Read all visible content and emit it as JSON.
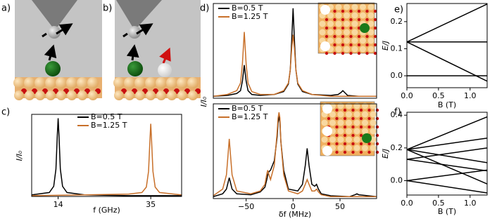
{
  "illustrations": {
    "labels": [
      "a)",
      "b)"
    ]
  },
  "chart_data": [
    {
      "type": "line",
      "panel": "c)",
      "xlabel": "f (GHz)",
      "ylabel": "I/I₀",
      "xlim": [
        8,
        42
      ],
      "ylim": [
        0,
        1.05
      ],
      "xticks": [
        14,
        35
      ],
      "legend": "upper center",
      "series": [
        {
          "name": "B=0.5 T",
          "color": "#000000",
          "x": [
            8,
            12,
            13,
            13.5,
            13.8,
            14,
            14.2,
            14.5,
            15,
            16,
            20,
            30,
            42
          ],
          "values": [
            0.02,
            0.05,
            0.13,
            0.35,
            0.77,
            1.0,
            0.77,
            0.35,
            0.13,
            0.05,
            0.02,
            0.01,
            0.01
          ]
        },
        {
          "name": "B=1.25 T",
          "color": "#c8702a",
          "x": [
            8,
            20,
            30,
            33,
            34,
            34.5,
            34.8,
            35,
            35.2,
            35.5,
            36,
            37,
            42
          ],
          "values": [
            0.01,
            0.02,
            0.03,
            0.05,
            0.12,
            0.32,
            0.7,
            0.93,
            0.7,
            0.32,
            0.12,
            0.05,
            0.02
          ]
        }
      ]
    },
    {
      "type": "line",
      "panel": "d)",
      "ylabel": "I/I₀",
      "xlim": [
        -85,
        89
      ],
      "ylim": [
        0,
        1.0
      ],
      "legend": "upper left",
      "series": [
        {
          "name": "B=0.5 T",
          "color": "#000000",
          "x": [
            -85,
            -70,
            -60,
            -56,
            -54,
            -52,
            -50,
            -48,
            -44,
            -35,
            -20,
            -10,
            -5,
            -3,
            -1.5,
            0,
            1.5,
            3,
            5,
            10,
            20,
            40,
            48,
            51,
            53,
            55,
            58,
            70,
            89
          ],
          "values": [
            0.02,
            0.03,
            0.05,
            0.08,
            0.18,
            0.35,
            0.18,
            0.08,
            0.04,
            0.03,
            0.04,
            0.07,
            0.15,
            0.3,
            0.6,
            0.95,
            0.6,
            0.3,
            0.15,
            0.07,
            0.04,
            0.03,
            0.04,
            0.06,
            0.08,
            0.06,
            0.03,
            0.02,
            0.02
          ]
        },
        {
          "name": "B=1.25 T",
          "color": "#c8702a",
          "x": [
            -85,
            -70,
            -60,
            -56,
            -54,
            -52,
            -50,
            -48,
            -44,
            -35,
            -20,
            -10,
            -5,
            -3,
            -1.5,
            0,
            1.5,
            3,
            5,
            10,
            20,
            40,
            48,
            51,
            53,
            55,
            58,
            70,
            89
          ],
          "values": [
            0.02,
            0.04,
            0.08,
            0.16,
            0.36,
            0.7,
            0.36,
            0.16,
            0.07,
            0.04,
            0.04,
            0.08,
            0.16,
            0.3,
            0.52,
            0.67,
            0.52,
            0.3,
            0.16,
            0.08,
            0.04,
            0.02,
            0.02,
            0.02,
            0.02,
            0.02,
            0.02,
            0.02,
            0.02
          ]
        }
      ]
    },
    {
      "type": "line",
      "xlabel": "δf (MHz)",
      "xlim": [
        -85,
        89
      ],
      "ylim": [
        0,
        1.0
      ],
      "xticks": [
        {
          "value": -50,
          "label": "−50"
        },
        0,
        50
      ],
      "legend": "upper left",
      "series": [
        {
          "name": "B=0.5 T",
          "color": "#000000",
          "x": [
            -85,
            -75,
            -71,
            -69,
            -68,
            -67,
            -65,
            -60,
            -45,
            -35,
            -30,
            -28,
            -27,
            -26,
            -24,
            -20,
            -17,
            -16,
            -15,
            -14,
            -13,
            -10,
            -5,
            5,
            10,
            13,
            15,
            17,
            20,
            23,
            25,
            27,
            30,
            40,
            60,
            66,
            68,
            70,
            89
          ],
          "values": [
            0.02,
            0.05,
            0.1,
            0.18,
            0.22,
            0.18,
            0.1,
            0.05,
            0.04,
            0.07,
            0.12,
            0.2,
            0.25,
            0.28,
            0.3,
            0.4,
            0.65,
            0.8,
            0.87,
            0.8,
            0.6,
            0.3,
            0.1,
            0.08,
            0.15,
            0.35,
            0.53,
            0.35,
            0.15,
            0.13,
            0.15,
            0.1,
            0.05,
            0.03,
            0.02,
            0.04,
            0.05,
            0.04,
            0.02
          ]
        },
        {
          "name": "B=1.25 T",
          "color": "#c8702a",
          "x": [
            -85,
            -75,
            -71,
            -69,
            -68,
            -67,
            -65,
            -60,
            -45,
            -35,
            -30,
            -28,
            -27,
            -26,
            -24,
            -20,
            -17,
            -16,
            -15,
            -14,
            -13,
            -10,
            -5,
            5,
            10,
            13,
            15,
            17,
            20,
            23,
            25,
            27,
            30,
            40,
            60,
            66,
            68,
            70,
            89
          ],
          "values": [
            0.03,
            0.1,
            0.25,
            0.5,
            0.63,
            0.5,
            0.25,
            0.08,
            0.05,
            0.08,
            0.15,
            0.26,
            0.3,
            0.26,
            0.2,
            0.35,
            0.7,
            0.85,
            0.91,
            0.85,
            0.6,
            0.25,
            0.08,
            0.05,
            0.08,
            0.15,
            0.2,
            0.15,
            0.08,
            0.08,
            0.1,
            0.07,
            0.04,
            0.02,
            0.02,
            0.02,
            0.02,
            0.02,
            0.02
          ]
        }
      ]
    },
    {
      "type": "line",
      "panel": "e)",
      "xlabel": "B (T)",
      "ylabel": "E/J",
      "xlim": [
        0,
        1.27
      ],
      "ylim": [
        -0.044,
        0.267
      ],
      "xticks": [
        {
          "value": 0,
          "label": "0.0"
        },
        0.5,
        {
          "value": 1,
          "label": "1.0"
        }
      ],
      "yticks": [
        {
          "value": 0,
          "label": "0.0"
        },
        0.1,
        0.2
      ],
      "series": [
        {
          "color": "#000000",
          "x": [
            0,
            1.27
          ],
          "values": [
            0.125,
            0.265
          ]
        },
        {
          "color": "#000000",
          "x": [
            0,
            1.27
          ],
          "values": [
            0.125,
            0.125
          ]
        },
        {
          "color": "#000000",
          "x": [
            0,
            1.27
          ],
          "values": [
            0.125,
            -0.02
          ]
        },
        {
          "color": "#000000",
          "x": [
            0,
            1.27
          ],
          "values": [
            0,
            0
          ]
        }
      ]
    },
    {
      "type": "line",
      "panel": "f)",
      "xlabel": "B (T)",
      "ylabel": "E/J",
      "xlim": [
        0,
        1.27
      ],
      "ylim": [
        -0.088,
        0.418
      ],
      "xticks": [
        {
          "value": 0,
          "label": "0.0"
        },
        0.5,
        {
          "value": 1,
          "label": "1.0"
        }
      ],
      "yticks": [
        {
          "value": 0,
          "label": "0.0"
        },
        0.2,
        0.4
      ],
      "series": [
        {
          "color": "#000000",
          "x": [
            0,
            1.27
          ],
          "values": [
            0.19,
            0.39
          ]
        },
        {
          "color": "#000000",
          "x": [
            0,
            1.27
          ],
          "values": [
            0.19,
            0.26
          ]
        },
        {
          "color": "#000000",
          "x": [
            0,
            1.27
          ],
          "values": [
            0.19,
            0.11
          ]
        },
        {
          "color": "#000000",
          "x": [
            0,
            1.27
          ],
          "values": [
            0.19,
            -0.02
          ]
        },
        {
          "color": "#000000",
          "x": [
            0,
            1.27
          ],
          "values": [
            0.13,
            0.2
          ]
        },
        {
          "color": "#000000",
          "x": [
            0,
            1.27
          ],
          "values": [
            0.13,
            0.06
          ]
        },
        {
          "color": "#000000",
          "x": [
            0,
            1.27
          ],
          "values": [
            0,
            0.065
          ]
        },
        {
          "color": "#000000",
          "x": [
            0,
            1.27
          ],
          "values": [
            0,
            -0.075
          ]
        }
      ]
    }
  ]
}
